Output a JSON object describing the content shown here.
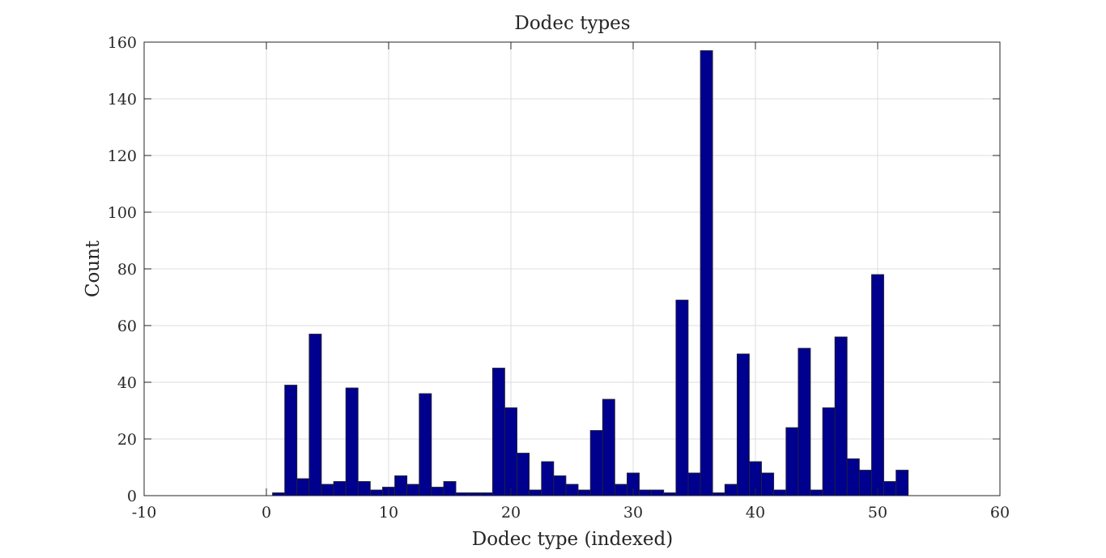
{
  "chart_data": {
    "type": "bar",
    "title": "Dodec types",
    "xlabel": "Dodec type (indexed)",
    "ylabel": "Count",
    "xlim": [
      -10,
      60
    ],
    "ylim": [
      0,
      160
    ],
    "xticks": [
      -10,
      0,
      10,
      20,
      30,
      40,
      50,
      60
    ],
    "yticks": [
      0,
      20,
      40,
      60,
      80,
      100,
      120,
      140,
      160
    ],
    "grid": true,
    "bar_color": "#00008f",
    "bar_edge_color": "#262626",
    "bin_width": 1,
    "bins": [
      {
        "x": 1,
        "value": 1
      },
      {
        "x": 2,
        "value": 39
      },
      {
        "x": 3,
        "value": 6
      },
      {
        "x": 4,
        "value": 57
      },
      {
        "x": 5,
        "value": 4
      },
      {
        "x": 6,
        "value": 5
      },
      {
        "x": 7,
        "value": 38
      },
      {
        "x": 8,
        "value": 5
      },
      {
        "x": 9,
        "value": 2
      },
      {
        "x": 10,
        "value": 3
      },
      {
        "x": 11,
        "value": 7
      },
      {
        "x": 12,
        "value": 4
      },
      {
        "x": 13,
        "value": 36
      },
      {
        "x": 14,
        "value": 3
      },
      {
        "x": 15,
        "value": 5
      },
      {
        "x": 16,
        "value": 1
      },
      {
        "x": 17,
        "value": 1
      },
      {
        "x": 18,
        "value": 1
      },
      {
        "x": 19,
        "value": 45
      },
      {
        "x": 20,
        "value": 31
      },
      {
        "x": 21,
        "value": 15
      },
      {
        "x": 22,
        "value": 2
      },
      {
        "x": 23,
        "value": 12
      },
      {
        "x": 24,
        "value": 7
      },
      {
        "x": 25,
        "value": 4
      },
      {
        "x": 26,
        "value": 2
      },
      {
        "x": 27,
        "value": 23
      },
      {
        "x": 28,
        "value": 34
      },
      {
        "x": 29,
        "value": 4
      },
      {
        "x": 30,
        "value": 8
      },
      {
        "x": 31,
        "value": 2
      },
      {
        "x": 32,
        "value": 2
      },
      {
        "x": 33,
        "value": 1
      },
      {
        "x": 34,
        "value": 69
      },
      {
        "x": 35,
        "value": 8
      },
      {
        "x": 36,
        "value": 157
      },
      {
        "x": 37,
        "value": 1
      },
      {
        "x": 38,
        "value": 4
      },
      {
        "x": 39,
        "value": 50
      },
      {
        "x": 40,
        "value": 12
      },
      {
        "x": 41,
        "value": 8
      },
      {
        "x": 42,
        "value": 2
      },
      {
        "x": 43,
        "value": 24
      },
      {
        "x": 44,
        "value": 52
      },
      {
        "x": 45,
        "value": 2
      },
      {
        "x": 46,
        "value": 31
      },
      {
        "x": 47,
        "value": 56
      },
      {
        "x": 48,
        "value": 13
      },
      {
        "x": 49,
        "value": 9
      },
      {
        "x": 50,
        "value": 78
      },
      {
        "x": 51,
        "value": 5
      },
      {
        "x": 52,
        "value": 9
      }
    ]
  }
}
